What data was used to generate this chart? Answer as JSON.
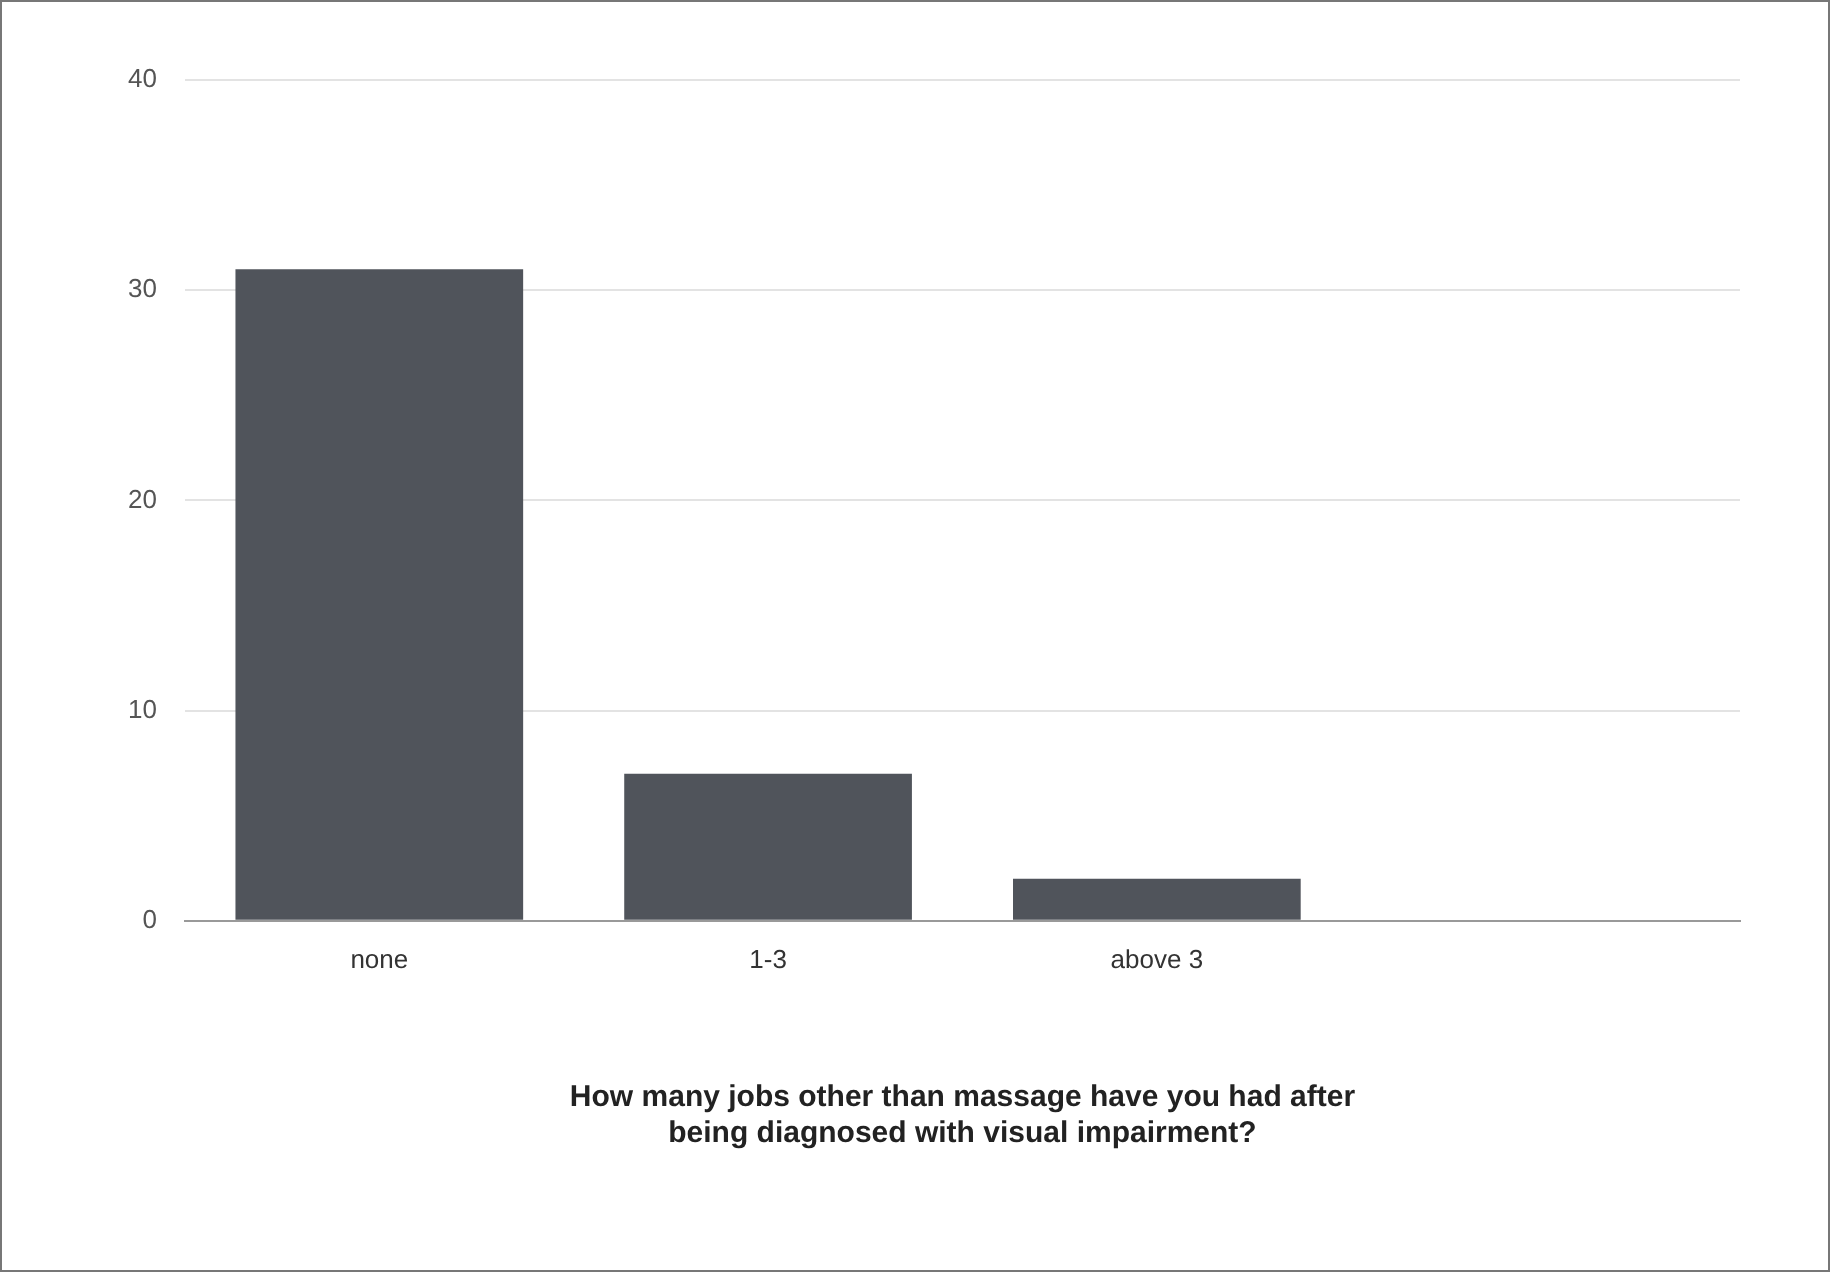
{
  "chart_data": {
    "type": "bar",
    "xlabel": "How many jobs other than massage have you had after being diagnosed with visual impairment?",
    "categories": [
      "none",
      "1-3",
      "above 3",
      null
    ],
    "values": [
      31,
      7,
      2,
      null
    ],
    "color": "#50545b",
    "ylim": [
      0,
      40
    ],
    "yticks": [
      0,
      10,
      20,
      30,
      40
    ],
    "grid": "y",
    "legend": false
  }
}
